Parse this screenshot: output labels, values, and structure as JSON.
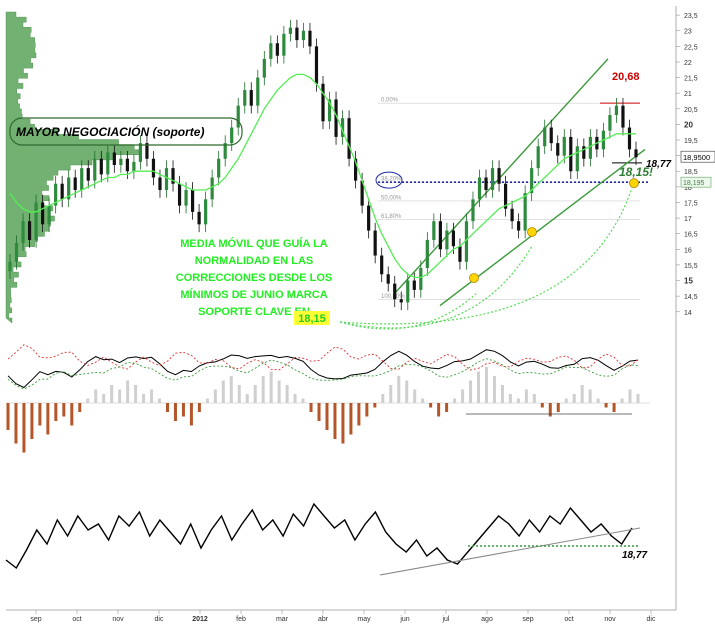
{
  "chart_data": [
    {
      "type": "line",
      "panel": "price",
      "title": "",
      "y_ticks": [
        "23,5",
        "23",
        "22,5",
        "22",
        "21,5",
        "21",
        "20,5",
        "20",
        "19,5",
        "19",
        "18,5",
        "18",
        "17,5",
        "17",
        "16,5",
        "16",
        "15,5",
        "15",
        "14,5",
        "14"
      ],
      "ylim": [
        13.8,
        23.6
      ],
      "last_price_label": "18,9500",
      "second_price_label": "18,195",
      "fib_labels": [
        "0,00%",
        "38,20%",
        "50,00%",
        "61,80%",
        "100,00%"
      ],
      "annotations": {
        "high_label": "20,68",
        "level_label": "18,77",
        "support_label": "18,15!",
        "volume_profile_label": "MAYOR NEGOCIACIÓN (soporte)",
        "moving_average_note": [
          "MEDIA MÓVIL QUE GUÍA LA",
          "NORMALIDAD EN LAS",
          "CORRECCIONES DESDE LOS",
          "MÍNIMOS DE JUNIO MARCA",
          "SOPORTE CLAVE EN"
        ],
        "moving_average_note_value": "18,15"
      },
      "series": [
        {
          "values": [
            15.6,
            16.2,
            16.9,
            16.3,
            17.5,
            16.8,
            17.4,
            18.1,
            17.6,
            18.3,
            17.9,
            18.6,
            18.2,
            18.9,
            18.4,
            19.1,
            18.7,
            18.9,
            18.5,
            18.8,
            19.4,
            18.9,
            18.3,
            17.9,
            18.6,
            18.1,
            17.4,
            17.9,
            17.2,
            16.8,
            17.6,
            18.3,
            18.9,
            19.4,
            19.9,
            20.6,
            21.1,
            20.6,
            21.5,
            22.1,
            22.6,
            22.2,
            22.9,
            23.1,
            22.7,
            23.0,
            22.5,
            21.3,
            20.1,
            20.8,
            19.6,
            20.2,
            18.9,
            18.2,
            17.4,
            16.6,
            15.8,
            15.2,
            14.9,
            14.4,
            14.3,
            15.0,
            14.7,
            15.4,
            16.3,
            16.9,
            16.0,
            16.6,
            16.1,
            15.6,
            16.9,
            17.6,
            18.3,
            17.9,
            18.6,
            18.1,
            17.3,
            16.9,
            16.6,
            17.8,
            18.6,
            19.3,
            19.9,
            19.4,
            19.0,
            19.6,
            18.5,
            19.3,
            18.9,
            19.6,
            19.2,
            19.8,
            20.3,
            20.6,
            19.9,
            19.2,
            18.95
          ]
        },
        {
          "values": [
            17.8,
            17.5,
            17.3,
            17.2,
            17.2,
            17.3,
            17.4,
            17.5,
            17.6,
            17.7,
            17.8,
            17.9,
            18.0,
            18.1,
            18.2,
            18.3,
            18.3,
            18.4,
            18.4,
            18.5,
            18.5,
            18.5,
            18.5,
            18.4,
            18.3,
            18.2,
            18.1,
            18.0,
            17.9,
            17.9,
            17.9,
            18.0,
            18.1,
            18.3,
            18.6,
            18.9,
            19.3,
            19.7,
            20.1,
            20.5,
            20.8,
            21.1,
            21.3,
            21.5,
            21.6,
            21.6,
            21.5,
            21.3,
            21.0,
            20.7,
            20.3,
            19.8,
            19.3,
            18.8,
            18.2,
            17.6,
            17.0,
            16.5,
            16.1,
            15.7,
            15.4,
            15.2,
            15.1,
            15.1,
            15.2,
            15.4,
            15.6,
            15.8,
            16.0,
            16.1,
            16.3,
            16.5,
            16.7,
            16.9,
            17.1,
            17.3,
            17.4,
            17.5,
            17.6,
            17.7,
            17.9,
            18.1,
            18.3,
            18.5,
            18.7,
            18.9,
            19.0,
            19.1,
            19.2,
            19.3,
            19.4,
            19.5,
            19.6,
            19.7,
            19.7,
            19.7,
            19.7
          ]
        }
      ]
    },
    {
      "type": "bar",
      "panel": "oscillator",
      "title": "",
      "values": [
        -0.6,
        -0.9,
        -1.1,
        -0.8,
        -0.5,
        -0.7,
        -0.4,
        -0.3,
        -0.5,
        -0.2,
        0.1,
        0.3,
        0.2,
        0.4,
        0.3,
        0.5,
        0.4,
        0.2,
        0.3,
        0.1,
        -0.2,
        -0.4,
        -0.3,
        -0.5,
        -0.2,
        0.1,
        0.3,
        0.5,
        0.6,
        0.4,
        0.2,
        0.4,
        0.6,
        0.7,
        0.5,
        0.4,
        0.2,
        0.1,
        -0.2,
        -0.4,
        -0.6,
        -0.8,
        -0.9,
        -0.7,
        -0.5,
        -0.3,
        -0.1,
        0.2,
        0.4,
        0.6,
        0.5,
        0.3,
        0.1,
        -0.1,
        -0.3,
        -0.2,
        0.1,
        0.3,
        0.5,
        0.7,
        0.8,
        0.6,
        0.4,
        0.2,
        0.1,
        0.3,
        0.2,
        -0.1,
        -0.3,
        -0.2,
        0.1,
        0.2,
        0.4,
        0.3,
        0.1,
        -0.1,
        -0.2,
        0.1,
        0.3,
        0.2
      ]
    },
    {
      "type": "line",
      "panel": "rsi",
      "title": "",
      "level_label": "18,77",
      "x_ticks": [
        "sep",
        "oct",
        "nov",
        "dic",
        "2012",
        "feb",
        "mar",
        "abr",
        "may",
        "jun",
        "jul",
        "ago",
        "sep",
        "oct",
        "nov",
        "dic"
      ],
      "values": [
        40,
        36,
        45,
        55,
        48,
        60,
        52,
        62,
        55,
        58,
        50,
        62,
        57,
        64,
        52,
        60,
        54,
        48,
        58,
        46,
        55,
        62,
        50,
        58,
        65,
        55,
        60,
        52,
        63,
        57,
        68,
        62,
        56,
        60,
        50,
        58,
        64,
        54,
        48,
        44,
        50,
        42,
        46,
        40,
        38,
        44,
        50,
        56,
        62,
        58,
        52,
        60,
        54,
        62,
        58,
        66,
        60,
        54,
        58,
        52,
        48,
        56
      ]
    }
  ]
}
